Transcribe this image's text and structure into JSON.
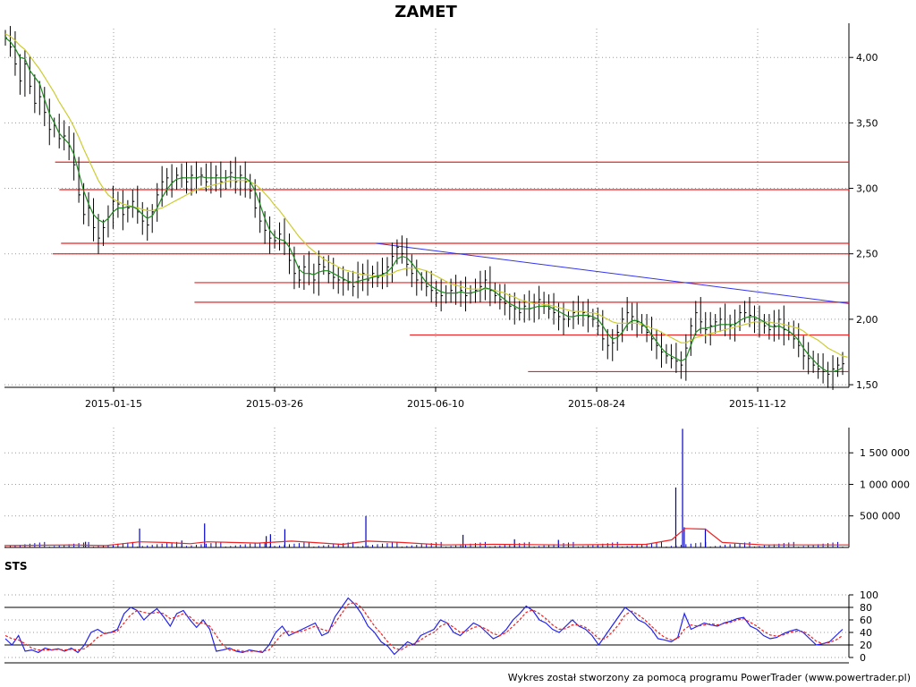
{
  "chart_data": [
    {
      "type": "ohlc",
      "panel": "price",
      "title": "ZAMET",
      "x_tick_labels": [
        "2015-01-15",
        "2015-03-26",
        "2015-06-10",
        "2015-08-24",
        "2015-11-12"
      ],
      "y_tick_labels": [
        "4,00",
        "3,50",
        "3,00",
        "2,50",
        "2,00",
        "1,50"
      ],
      "y_ticks": [
        4.0,
        3.5,
        3.0,
        2.5,
        2.0,
        1.5
      ],
      "ylim": [
        1.48,
        4.22
      ],
      "grid": true,
      "colors": {
        "bars": "#000000",
        "fast_ma": "#1f8a1f",
        "slow_ma": "#cccc33",
        "support_resistance": "#ee2222",
        "trendline": "#3333ee"
      },
      "close_series": [
        4.15,
        4.08,
        3.95,
        3.82,
        3.95,
        3.78,
        3.65,
        3.7,
        3.58,
        3.45,
        3.48,
        3.38,
        3.4,
        3.32,
        3.18,
        2.95,
        2.8,
        2.85,
        2.7,
        2.62,
        2.7,
        2.78,
        2.9,
        2.88,
        2.8,
        2.85,
        2.9,
        2.82,
        2.75,
        2.72,
        2.82,
        2.95,
        3.05,
        3.08,
        3.05,
        3.1,
        3.08,
        3.05,
        3.1,
        3.08,
        3.1,
        3.05,
        3.08,
        3.1,
        3.05,
        3.08,
        3.12,
        3.05,
        3.1,
        3.05,
        2.98,
        2.85,
        2.75,
        2.68,
        2.62,
        2.6,
        2.65,
        2.58,
        2.45,
        2.35,
        2.3,
        2.4,
        2.35,
        2.3,
        2.42,
        2.4,
        2.35,
        2.32,
        2.3,
        2.3,
        2.28,
        2.25,
        2.32,
        2.35,
        2.3,
        2.35,
        2.32,
        2.35,
        2.4,
        2.48,
        2.55,
        2.5,
        2.42,
        2.35,
        2.3,
        2.28,
        2.25,
        2.22,
        2.2,
        2.18,
        2.2,
        2.22,
        2.2,
        2.22,
        2.18,
        2.2,
        2.22,
        2.25,
        2.3,
        2.22,
        2.18,
        2.15,
        2.12,
        2.1,
        2.08,
        2.05,
        2.1,
        2.08,
        2.12,
        2.15,
        2.1,
        2.08,
        2.05,
        2.02,
        2.0,
        2.0,
        2.05,
        2.06,
        2.05,
        2.02,
        2.0,
        1.95,
        1.85,
        1.8,
        1.82,
        1.9,
        2.0,
        2.05,
        2.02,
        1.98,
        1.95,
        1.9,
        1.85,
        1.8,
        1.75,
        1.72,
        1.7,
        1.68,
        1.65,
        1.78,
        1.95,
        2.05,
        1.98,
        1.92,
        1.95,
        1.98,
        2.0,
        1.96,
        1.95,
        1.97,
        2.05,
        2.05,
        2.03,
        2.0,
        1.98,
        1.95,
        1.92,
        1.95,
        2.0,
        1.92,
        1.9,
        1.85,
        1.8,
        1.72,
        1.7,
        1.65,
        1.62,
        1.6,
        1.58,
        1.62,
        1.65,
        1.66
      ],
      "fast_ma": [
        4.15,
        4.12,
        4.07,
        4.0,
        3.99,
        3.9,
        3.85,
        3.8,
        3.68,
        3.57,
        3.5,
        3.42,
        3.38,
        3.34,
        3.26,
        3.12,
        2.98,
        2.88,
        2.8,
        2.76,
        2.74,
        2.77,
        2.82,
        2.85,
        2.85,
        2.86,
        2.86,
        2.84,
        2.8,
        2.77,
        2.79,
        2.85,
        2.93,
        2.99,
        3.04,
        3.07,
        3.08,
        3.08,
        3.08,
        3.08,
        3.09,
        3.08,
        3.08,
        3.08,
        3.08,
        3.08,
        3.09,
        3.08,
        3.08,
        3.08,
        3.05,
        2.98,
        2.88,
        2.77,
        2.68,
        2.63,
        2.61,
        2.6,
        2.55,
        2.47,
        2.38,
        2.35,
        2.35,
        2.34,
        2.36,
        2.37,
        2.37,
        2.35,
        2.33,
        2.31,
        2.29,
        2.28,
        2.29,
        2.3,
        2.31,
        2.32,
        2.33,
        2.34,
        2.36,
        2.4,
        2.46,
        2.48,
        2.47,
        2.43,
        2.38,
        2.33,
        2.28,
        2.25,
        2.23,
        2.21,
        2.2,
        2.2,
        2.2,
        2.21,
        2.2,
        2.2,
        2.21,
        2.22,
        2.24,
        2.23,
        2.21,
        2.18,
        2.15,
        2.12,
        2.1,
        2.08,
        2.08,
        2.08,
        2.09,
        2.1,
        2.1,
        2.1,
        2.08,
        2.06,
        2.04,
        2.02,
        2.02,
        2.03,
        2.03,
        2.03,
        2.02,
        2.0,
        1.95,
        1.89,
        1.85,
        1.86,
        1.9,
        1.96,
        1.99,
        1.99,
        1.97,
        1.93,
        1.88,
        1.83,
        1.78,
        1.74,
        1.72,
        1.7,
        1.68,
        1.7,
        1.8,
        1.9,
        1.93,
        1.93,
        1.94,
        1.95,
        1.96,
        1.96,
        1.96,
        1.96,
        1.99,
        2.01,
        2.02,
        2.02,
        2.0,
        1.98,
        1.95,
        1.94,
        1.95,
        1.93,
        1.91,
        1.88,
        1.84,
        1.78,
        1.73,
        1.69,
        1.65,
        1.62,
        1.6,
        1.6,
        1.61,
        1.63
      ],
      "slow_ma": [
        4.18,
        4.16,
        4.13,
        4.09,
        4.06,
        4.01,
        3.96,
        3.91,
        3.85,
        3.79,
        3.73,
        3.66,
        3.6,
        3.54,
        3.47,
        3.39,
        3.3,
        3.22,
        3.14,
        3.06,
        3.0,
        2.95,
        2.92,
        2.9,
        2.88,
        2.87,
        2.86,
        2.85,
        2.84,
        2.83,
        2.83,
        2.84,
        2.85,
        2.87,
        2.89,
        2.91,
        2.93,
        2.95,
        2.97,
        2.99,
        3.0,
        3.01,
        3.02,
        3.03,
        3.04,
        3.05,
        3.06,
        3.06,
        3.06,
        3.06,
        3.05,
        3.03,
        3.0,
        2.96,
        2.92,
        2.87,
        2.83,
        2.78,
        2.73,
        2.68,
        2.63,
        2.59,
        2.55,
        2.52,
        2.49,
        2.46,
        2.44,
        2.42,
        2.4,
        2.38,
        2.37,
        2.36,
        2.35,
        2.34,
        2.34,
        2.33,
        2.33,
        2.33,
        2.34,
        2.35,
        2.37,
        2.38,
        2.39,
        2.39,
        2.39,
        2.38,
        2.37,
        2.35,
        2.33,
        2.31,
        2.29,
        2.27,
        2.26,
        2.25,
        2.24,
        2.23,
        2.23,
        2.23,
        2.23,
        2.23,
        2.22,
        2.21,
        2.2,
        2.18,
        2.17,
        2.15,
        2.14,
        2.13,
        2.12,
        2.12,
        2.11,
        2.11,
        2.1,
        2.09,
        2.08,
        2.07,
        2.06,
        2.06,
        2.06,
        2.05,
        2.05,
        2.04,
        2.02,
        2.0,
        1.98,
        1.97,
        1.97,
        1.97,
        1.97,
        1.97,
        1.96,
        1.95,
        1.93,
        1.92,
        1.9,
        1.88,
        1.86,
        1.84,
        1.82,
        1.82,
        1.84,
        1.86,
        1.87,
        1.88,
        1.89,
        1.9,
        1.91,
        1.92,
        1.93,
        1.94,
        1.95,
        1.96,
        1.97,
        1.98,
        1.98,
        1.98,
        1.98,
        1.97,
        1.97,
        1.96,
        1.95,
        1.94,
        1.93,
        1.91,
        1.88,
        1.86,
        1.84,
        1.81,
        1.78,
        1.76,
        1.74,
        1.72,
        1.71
      ],
      "horizontal_levels": [
        {
          "y": 3.2,
          "from": 0.06
        },
        {
          "y": 2.99,
          "from": 0.065
        },
        {
          "y": 2.58,
          "from": 0.067
        },
        {
          "y": 2.5,
          "from": 0.057
        },
        {
          "y": 2.28,
          "from": 0.225
        },
        {
          "y": 2.13,
          "from": 0.225
        },
        {
          "y": 1.88,
          "from": 0.48
        },
        {
          "y": 1.6,
          "from": 0.62
        }
      ],
      "trendline": {
        "from": [
          0.44,
          2.58
        ],
        "to": [
          1.0,
          2.12
        ]
      }
    },
    {
      "type": "bar",
      "panel": "volume",
      "y_tick_labels": [
        "1 500 000",
        "1 000 000",
        "500 000"
      ],
      "y_ticks": [
        1500000,
        1000000,
        500000
      ],
      "ylim": [
        0,
        1900000
      ],
      "colors": {
        "bars": "#0000cc",
        "average": "#ee2222"
      },
      "spikes": [
        {
          "x": 0.096,
          "v": 90000
        },
        {
          "x": 0.16,
          "v": 300000
        },
        {
          "x": 0.21,
          "v": 110000
        },
        {
          "x": 0.237,
          "v": 380000
        },
        {
          "x": 0.31,
          "v": 180000
        },
        {
          "x": 0.315,
          "v": 210000
        },
        {
          "x": 0.332,
          "v": 290000
        },
        {
          "x": 0.428,
          "v": 500000
        },
        {
          "x": 0.543,
          "v": 200000
        },
        {
          "x": 0.604,
          "v": 130000
        },
        {
          "x": 0.656,
          "v": 120000
        },
        {
          "x": 0.795,
          "v": 950000
        },
        {
          "x": 0.803,
          "v": 1880000
        },
        {
          "x": 0.805,
          "v": 320000
        },
        {
          "x": 0.83,
          "v": 300000
        }
      ],
      "average_line": [
        {
          "x": 0.0,
          "v": 30000
        },
        {
          "x": 0.08,
          "v": 40000
        },
        {
          "x": 0.12,
          "v": 30000
        },
        {
          "x": 0.16,
          "v": 90000
        },
        {
          "x": 0.19,
          "v": 80000
        },
        {
          "x": 0.22,
          "v": 60000
        },
        {
          "x": 0.24,
          "v": 90000
        },
        {
          "x": 0.3,
          "v": 70000
        },
        {
          "x": 0.34,
          "v": 100000
        },
        {
          "x": 0.4,
          "v": 50000
        },
        {
          "x": 0.43,
          "v": 100000
        },
        {
          "x": 0.47,
          "v": 80000
        },
        {
          "x": 0.52,
          "v": 40000
        },
        {
          "x": 0.58,
          "v": 50000
        },
        {
          "x": 0.66,
          "v": 40000
        },
        {
          "x": 0.76,
          "v": 50000
        },
        {
          "x": 0.79,
          "v": 120000
        },
        {
          "x": 0.806,
          "v": 300000
        },
        {
          "x": 0.83,
          "v": 290000
        },
        {
          "x": 0.85,
          "v": 80000
        },
        {
          "x": 0.9,
          "v": 40000
        },
        {
          "x": 1.0,
          "v": 40000
        }
      ]
    },
    {
      "type": "line",
      "panel": "STS",
      "panel_label": "STS",
      "y_tick_labels": [
        "100",
        "80",
        "60",
        "40",
        "20",
        "0"
      ],
      "y_ticks": [
        100,
        80,
        60,
        40,
        20,
        0
      ],
      "ylim": [
        0,
        100
      ],
      "reference_lines": [
        80,
        20
      ],
      "series": [
        {
          "color": "#2222ee",
          "values": [
            30,
            20,
            35,
            10,
            12,
            8,
            15,
            12,
            14,
            10,
            15,
            8,
            20,
            40,
            45,
            38,
            40,
            45,
            70,
            80,
            75,
            60,
            70,
            78,
            65,
            50,
            70,
            75,
            60,
            48,
            60,
            45,
            10,
            12,
            15,
            10,
            8,
            12,
            10,
            8,
            20,
            40,
            50,
            35,
            40,
            45,
            50,
            55,
            35,
            40,
            65,
            80,
            95,
            85,
            70,
            50,
            40,
            25,
            18,
            5,
            15,
            25,
            20,
            35,
            40,
            45,
            60,
            55,
            40,
            35,
            45,
            55,
            50,
            40,
            30,
            35,
            45,
            60,
            70,
            82,
            75,
            60,
            55,
            45,
            40,
            50,
            60,
            50,
            45,
            35,
            20,
            35,
            50,
            65,
            80,
            72,
            60,
            55,
            45,
            30,
            28,
            25,
            32,
            70,
            45,
            50,
            55,
            52,
            50,
            55,
            58,
            62,
            64,
            50,
            45,
            35,
            30,
            32,
            38,
            42,
            45,
            40,
            30,
            20,
            22,
            25,
            35,
            45
          ]
        },
        {
          "color": "#ee2222",
          "dashed": true,
          "values": [
            35,
            30,
            28,
            22,
            15,
            12,
            12,
            12,
            13,
            12,
            13,
            12,
            14,
            22,
            32,
            38,
            40,
            42,
            55,
            68,
            75,
            72,
            70,
            72,
            70,
            62,
            65,
            70,
            65,
            55,
            55,
            50,
            35,
            20,
            12,
            12,
            10,
            10,
            10,
            10,
            12,
            25,
            38,
            42,
            40,
            42,
            46,
            50,
            45,
            42,
            55,
            70,
            85,
            88,
            80,
            65,
            50,
            38,
            25,
            15,
            12,
            18,
            22,
            28,
            35,
            40,
            50,
            55,
            48,
            40,
            42,
            48,
            50,
            45,
            38,
            35,
            40,
            50,
            60,
            72,
            76,
            70,
            62,
            52,
            45,
            46,
            52,
            52,
            48,
            40,
            30,
            30,
            40,
            52,
            68,
            74,
            68,
            60,
            50,
            40,
            32,
            28,
            30,
            45,
            52,
            50,
            52,
            54,
            52,
            54,
            56,
            60,
            62,
            56,
            50,
            42,
            36,
            34,
            36,
            40,
            42,
            42,
            35,
            26,
            22,
            24,
            28,
            35
          ]
        }
      ]
    }
  ],
  "footer": "Wykres został stworzony za pomocą programu PowerTrader (www.powertrader.pl)"
}
